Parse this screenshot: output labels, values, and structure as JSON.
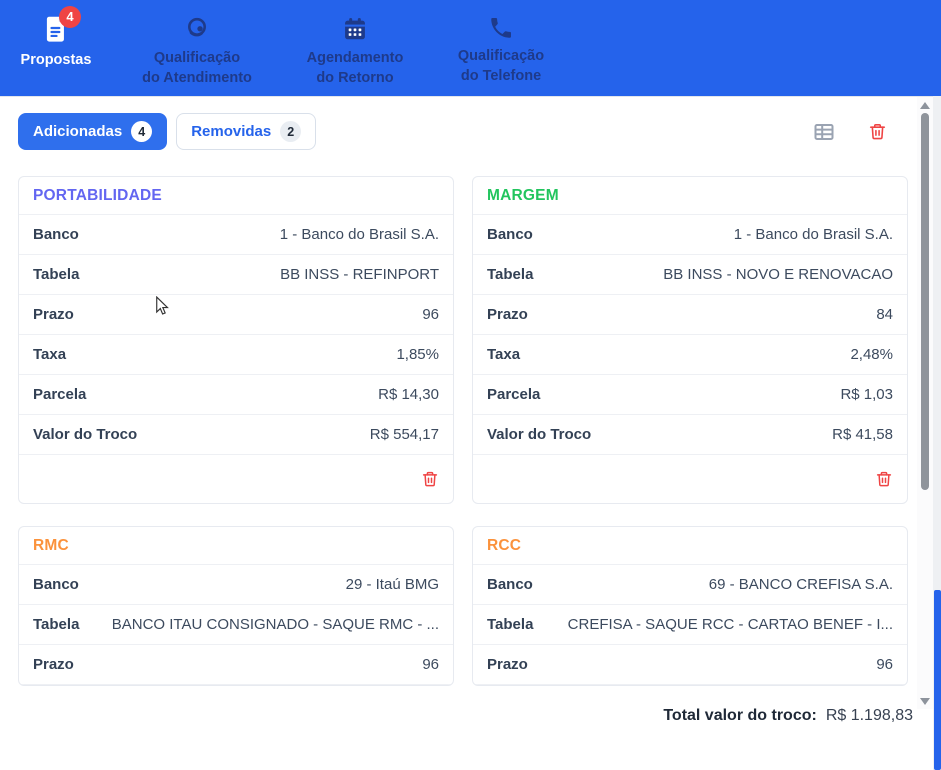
{
  "colors": {
    "header_bg": "#2563eb",
    "nav_inactive_text": "#1e3a8a",
    "badge_red": "#ef4444",
    "active_tab_bg": "#2f6fed",
    "tab_text_blue": "#2563eb",
    "trash_red": "#ef4444",
    "table_icon_gray": "#9aa3b2",
    "page_scroll_thumb": "#2563eb"
  },
  "nav": {
    "items": [
      {
        "line1": "Propostas",
        "line2": "",
        "icon": "document-icon",
        "badge": "4",
        "active": true
      },
      {
        "line1": "Qualificação",
        "line2": "do Atendimento",
        "icon": "headset-icon",
        "active": false
      },
      {
        "line1": "Agendamento",
        "line2": "do Retorno",
        "icon": "calendar-icon",
        "active": false
      },
      {
        "line1": "Qualificação",
        "line2": "do Telefone",
        "icon": "phone-icon",
        "active": false
      }
    ]
  },
  "tabs": {
    "added": {
      "label": "Adicionadas",
      "count": "4",
      "active": true
    },
    "removed": {
      "label": "Removidas",
      "count": "2",
      "active": false
    }
  },
  "toolbar": {
    "icons": [
      "table-view-icon",
      "delete-all-icon"
    ]
  },
  "cards": [
    {
      "title": "PORTABILIDADE",
      "title_color": "#6366f1",
      "rows": [
        [
          "Banco",
          "1 - Banco do Brasil S.A."
        ],
        [
          "Tabela",
          "BB INSS - REFINPORT"
        ],
        [
          "Prazo",
          "96"
        ],
        [
          "Taxa",
          "1,85%"
        ],
        [
          "Parcela",
          "R$ 14,30"
        ],
        [
          "Valor do Troco",
          "R$ 554,17"
        ]
      ],
      "footer_trash": true
    },
    {
      "title": "MARGEM",
      "title_color": "#22c55e",
      "rows": [
        [
          "Banco",
          "1 - Banco do Brasil S.A."
        ],
        [
          "Tabela",
          "BB INSS - NOVO E RENOVACAO"
        ],
        [
          "Prazo",
          "84"
        ],
        [
          "Taxa",
          "2,48%"
        ],
        [
          "Parcela",
          "R$ 1,03"
        ],
        [
          "Valor do Troco",
          "R$ 41,58"
        ]
      ],
      "footer_trash": true
    },
    {
      "title": "RMC",
      "title_color": "#fb923c",
      "rows": [
        [
          "Banco",
          "29 - Itaú BMG"
        ],
        [
          "Tabela",
          "BANCO ITAU CONSIGNADO - SAQUE RMC - ..."
        ],
        [
          "Prazo",
          "96"
        ]
      ],
      "footer_trash": false
    },
    {
      "title": "RCC",
      "title_color": "#fb923c",
      "rows": [
        [
          "Banco",
          "69 - BANCO CREFISA S.A."
        ],
        [
          "Tabela",
          "CREFISA - SAQUE RCC - CARTAO BENEF - I..."
        ],
        [
          "Prazo",
          "96"
        ]
      ],
      "footer_trash": false
    }
  ],
  "footer": {
    "total_label": "Total valor do troco:",
    "total_value": "R$ 1.198,83"
  }
}
